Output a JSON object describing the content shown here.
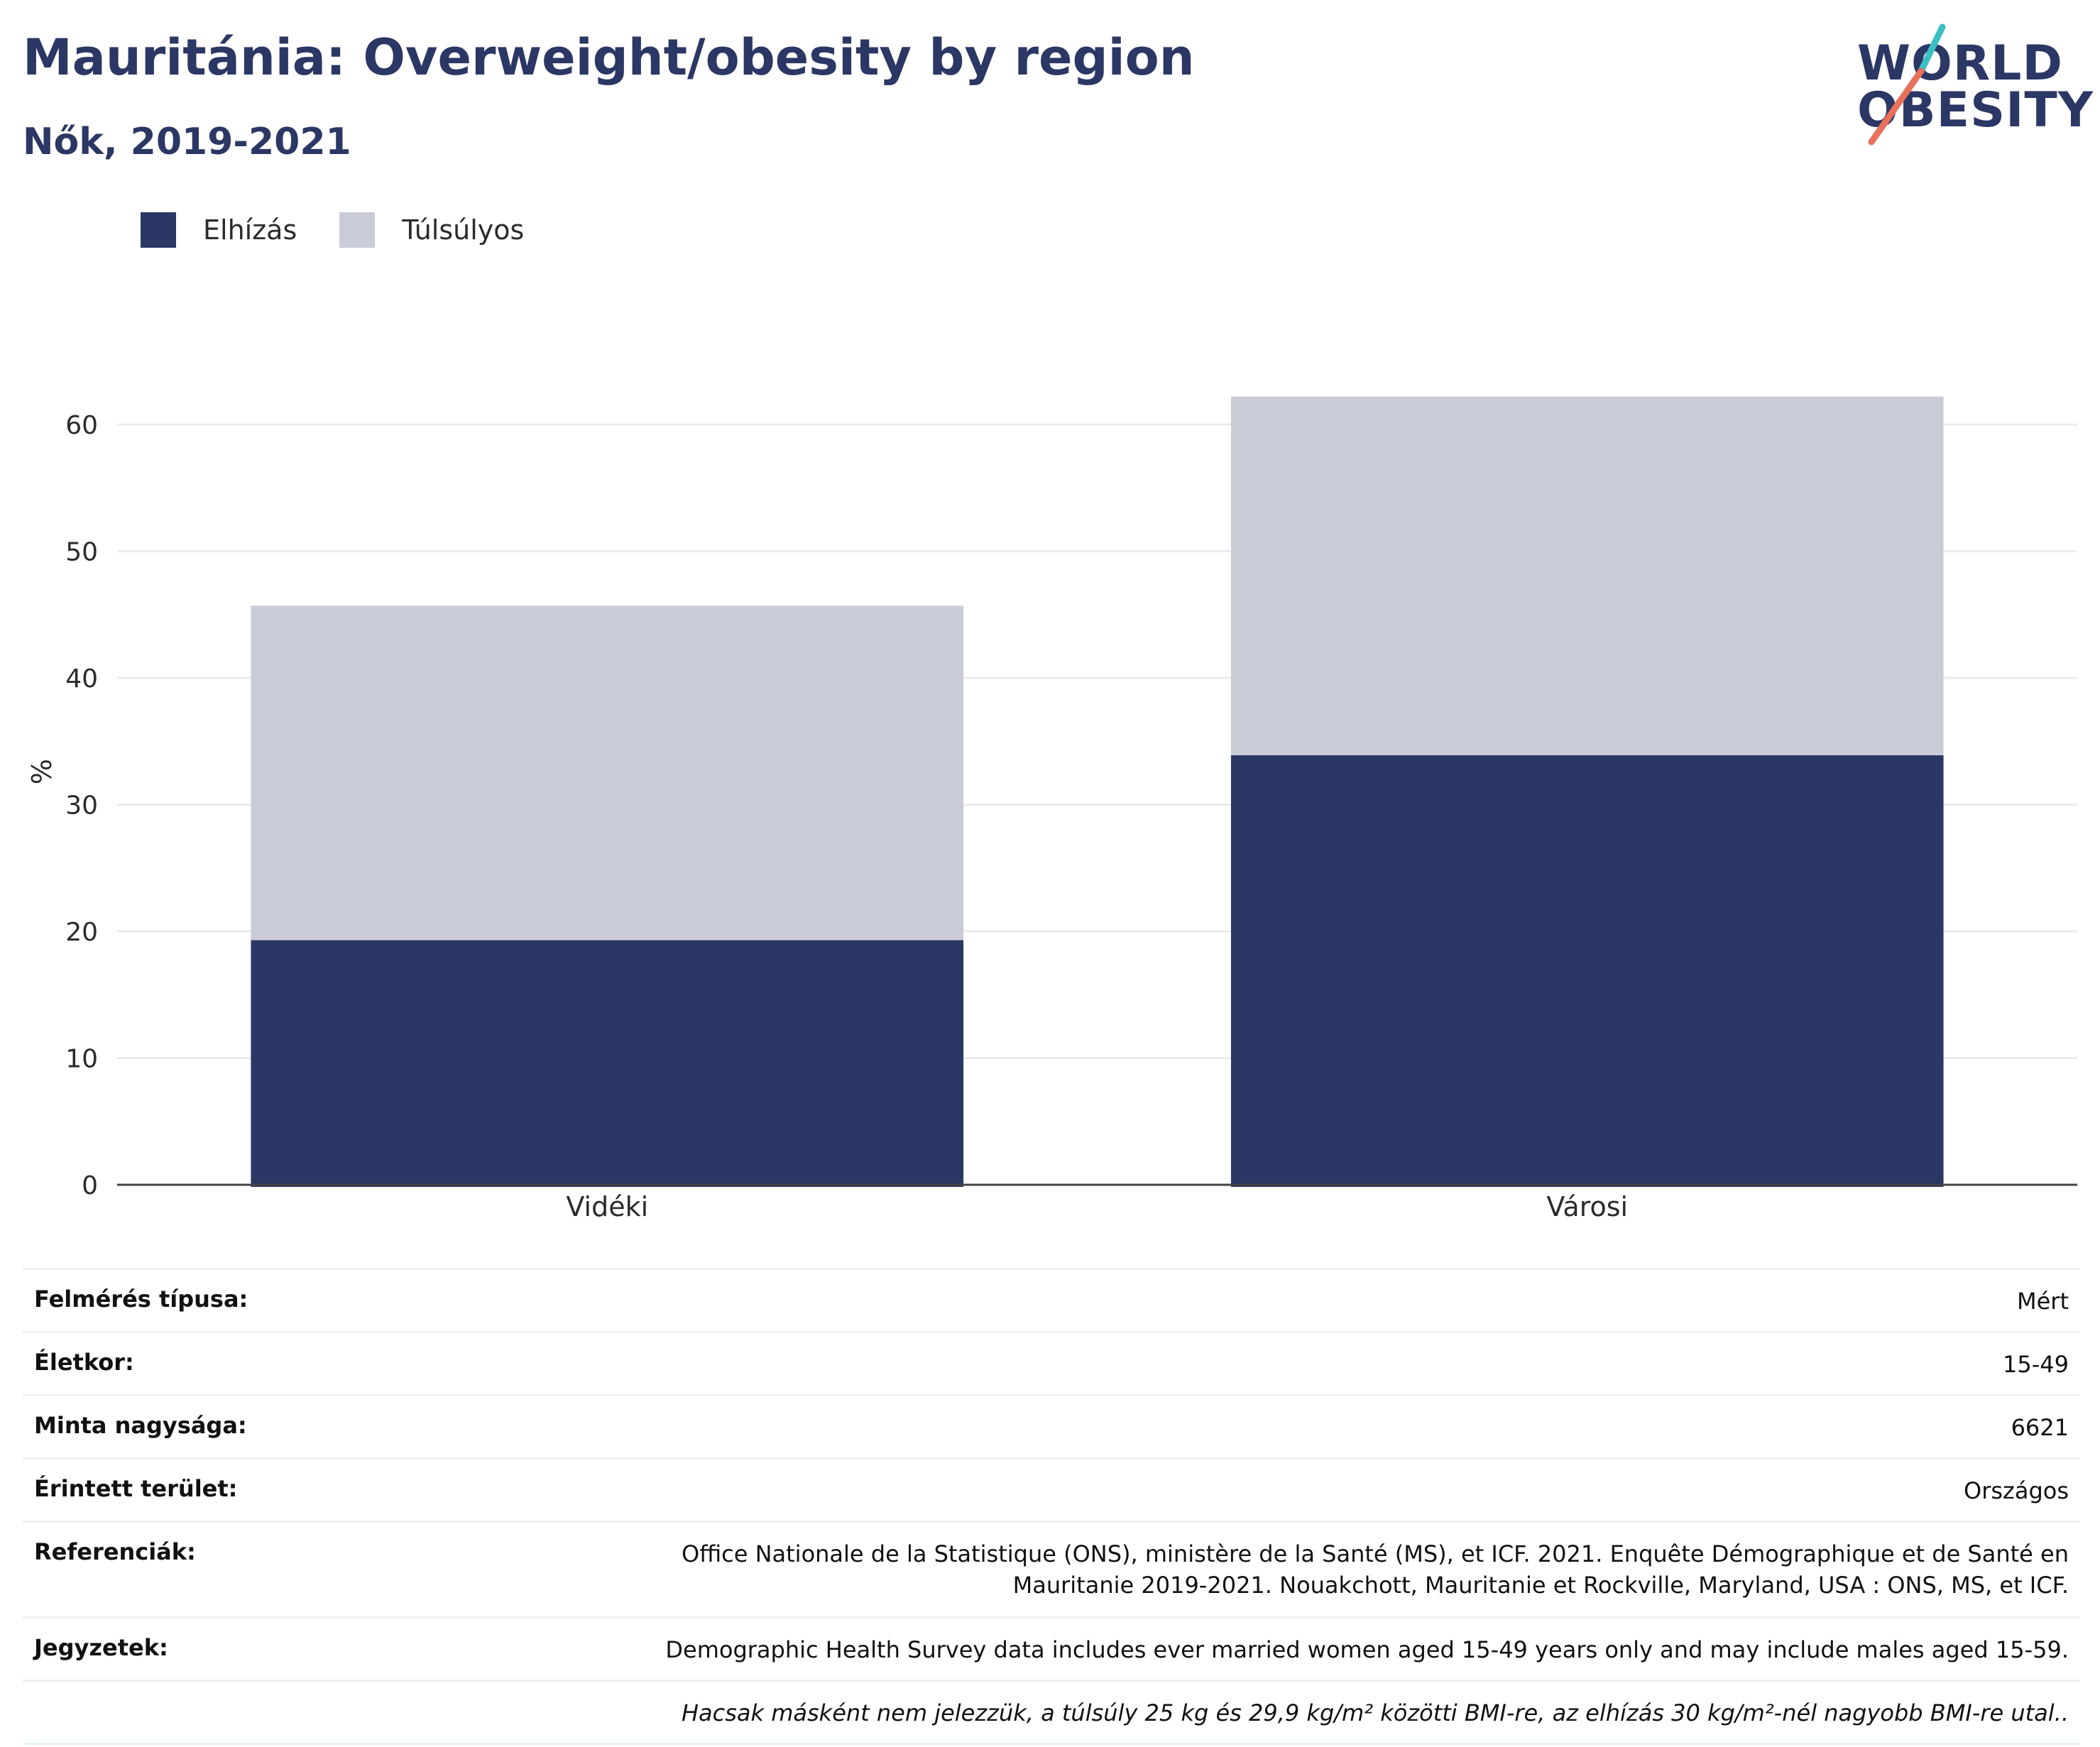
{
  "header": {
    "title": "Mauritánia: Overweight/obesity by region",
    "subtitle": "Nők, 2019-2021"
  },
  "logo": {
    "line1": "WORLD",
    "line2": "OBESITY",
    "slash_color_top": "#3bbfc4",
    "slash_color_bottom": "#e8715a"
  },
  "legend": [
    {
      "label": "Elhízás",
      "color": "#2b3764"
    },
    {
      "label": "Túlsúlyos",
      "color": "#c9cbd7"
    }
  ],
  "chart_data": {
    "type": "bar",
    "stacked": true,
    "categories": [
      "Vidéki",
      "Városi"
    ],
    "series": [
      {
        "name": "Elhízás",
        "values": [
          19.3,
          33.9
        ],
        "color": "#2b3764"
      },
      {
        "name": "Túlsúlyos",
        "values": [
          26.4,
          28.3
        ],
        "color": "#c9cbd7"
      }
    ],
    "ylabel": "%",
    "ylim": [
      0,
      65
    ],
    "yticks": [
      0,
      10,
      20,
      30,
      40,
      50,
      60
    ],
    "grid": true
  },
  "meta": [
    {
      "key": "Felmérés típusa:",
      "value": "Mért"
    },
    {
      "key": "Életkor:",
      "value": "15-49"
    },
    {
      "key": "Minta nagysága:",
      "value": "6621"
    },
    {
      "key": "Érintett terület:",
      "value": "Országos"
    },
    {
      "key": "Referenciák:",
      "value": "Office Nationale de la Statistique (ONS), ministère de la Santé (MS), et ICF. 2021. Enquête Démographique et de Santé en Mauritanie 2019-2021. Nouakchott, Mauritanie et Rockville, Maryland, USA : ONS, MS, et ICF."
    },
    {
      "key": "Jegyzetek:",
      "value": "Demographic Health Survey data includes ever married women aged 15-49 years only and may include males aged 15-59."
    },
    {
      "key": "",
      "value": "Hacsak másként nem jelezzük, a túlsúly 25 kg és 29,9 kg/m² közötti BMI-re, az elhízás 30 kg/m²-nél nagyobb BMI-re utal.."
    }
  ]
}
